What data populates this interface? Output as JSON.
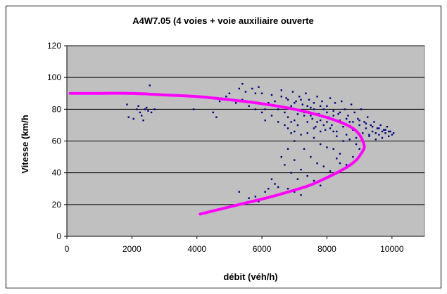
{
  "chart_data": {
    "type": "scatter",
    "title": "A4W7.05 (4 voies + voie auxiliaire ouverte",
    "xlabel": "débit (véh/h)",
    "ylabel": "Vitesse (km/h",
    "xlim": [
      0,
      11000
    ],
    "ylim": [
      0,
      120
    ],
    "xticks": [
      0,
      2000,
      4000,
      6000,
      8000,
      10000
    ],
    "yticks": [
      0,
      20,
      40,
      60,
      80,
      100,
      120
    ],
    "xtick_labels": [
      "0",
      "2000",
      "4000",
      "6000",
      "8000",
      "10000"
    ],
    "ytick_labels": [
      "0",
      "20",
      "40",
      "60",
      "80",
      "100",
      "120"
    ],
    "grid": "horizontal",
    "legend": "none",
    "plot_background": "#c0c0c0",
    "series": [
      {
        "kind": "scatter",
        "color": "#000080",
        "points": [
          [
            1850,
            83
          ],
          [
            1900,
            75
          ],
          [
            2050,
            74
          ],
          [
            2150,
            80
          ],
          [
            2200,
            82
          ],
          [
            2250,
            78
          ],
          [
            2300,
            76
          ],
          [
            2350,
            73
          ],
          [
            2400,
            80
          ],
          [
            2450,
            81
          ],
          [
            2500,
            79
          ],
          [
            2550,
            95
          ],
          [
            2600,
            78
          ],
          [
            2700,
            80
          ],
          [
            3900,
            80
          ],
          [
            4500,
            78
          ],
          [
            4600,
            75
          ],
          [
            4700,
            85
          ],
          [
            4900,
            88
          ],
          [
            5000,
            90
          ],
          [
            5200,
            84
          ],
          [
            5300,
            93
          ],
          [
            5400,
            96
          ],
          [
            5500,
            91
          ],
          [
            5700,
            93
          ],
          [
            5800,
            90
          ],
          [
            5900,
            94
          ],
          [
            6000,
            90
          ],
          [
            6100,
            73
          ],
          [
            6200,
            84
          ],
          [
            6300,
            89
          ],
          [
            6400,
            85
          ],
          [
            6500,
            80
          ],
          [
            6600,
            92
          ],
          [
            6700,
            78
          ],
          [
            6750,
            87
          ],
          [
            6800,
            75
          ],
          [
            6900,
            82
          ],
          [
            6950,
            91
          ],
          [
            7000,
            73
          ],
          [
            7050,
            85
          ],
          [
            7100,
            70
          ],
          [
            7150,
            88
          ],
          [
            7200,
            79
          ],
          [
            7250,
            83
          ],
          [
            7300,
            76
          ],
          [
            7350,
            90
          ],
          [
            7400,
            72
          ],
          [
            7450,
            86
          ],
          [
            7500,
            81
          ],
          [
            7550,
            74
          ],
          [
            7600,
            84
          ],
          [
            7650,
            69
          ],
          [
            7700,
            88
          ],
          [
            7750,
            77
          ],
          [
            7800,
            73
          ],
          [
            7850,
            85
          ],
          [
            7900,
            80
          ],
          [
            7950,
            67
          ],
          [
            8000,
            82
          ],
          [
            8050,
            75
          ],
          [
            8100,
            87
          ],
          [
            8150,
            70
          ],
          [
            8200,
            79
          ],
          [
            8250,
            84
          ],
          [
            8300,
            66
          ],
          [
            8350,
            77
          ],
          [
            8400,
            73
          ],
          [
            8450,
            85
          ],
          [
            8500,
            69
          ],
          [
            8550,
            80
          ],
          [
            8600,
            64
          ],
          [
            8650,
            76
          ],
          [
            8700,
            72
          ],
          [
            8750,
            83
          ],
          [
            8800,
            67
          ],
          [
            8850,
            78
          ],
          [
            8900,
            62
          ],
          [
            8950,
            74
          ],
          [
            9000,
            70
          ],
          [
            9050,
            80
          ],
          [
            9100,
            65
          ],
          [
            9150,
            72
          ],
          [
            9200,
            68
          ],
          [
            9250,
            75
          ],
          [
            9300,
            63
          ],
          [
            9350,
            70
          ],
          [
            9400,
            66
          ],
          [
            9450,
            72
          ],
          [
            9500,
            61
          ],
          [
            9550,
            68
          ],
          [
            9600,
            64
          ],
          [
            9650,
            70
          ],
          [
            9700,
            62
          ],
          [
            9750,
            67
          ],
          [
            9800,
            65
          ],
          [
            9850,
            69
          ],
          [
            9900,
            63
          ],
          [
            9950,
            66
          ],
          [
            10000,
            64
          ],
          [
            10050,
            65
          ],
          [
            6600,
            88
          ],
          [
            6800,
            86
          ],
          [
            7000,
            84
          ],
          [
            7200,
            86
          ],
          [
            7400,
            82
          ],
          [
            7600,
            80
          ],
          [
            7800,
            82
          ],
          [
            8000,
            78
          ],
          [
            8200,
            76
          ],
          [
            8400,
            78
          ],
          [
            8600,
            74
          ],
          [
            8800,
            72
          ],
          [
            9000,
            73
          ],
          [
            9200,
            71
          ],
          [
            9400,
            69
          ],
          [
            9600,
            68
          ],
          [
            9800,
            67
          ],
          [
            8700,
            61
          ],
          [
            8900,
            58
          ],
          [
            9100,
            60
          ],
          [
            9300,
            64
          ],
          [
            9500,
            65
          ],
          [
            9700,
            66
          ],
          [
            9900,
            66
          ],
          [
            7100,
            77
          ],
          [
            7300,
            78
          ],
          [
            7500,
            76
          ],
          [
            7700,
            72
          ],
          [
            7900,
            70
          ],
          [
            8100,
            68
          ],
          [
            8300,
            63
          ],
          [
            8500,
            60
          ],
          [
            7600,
            62
          ],
          [
            7800,
            58
          ],
          [
            8000,
            56
          ],
          [
            8200,
            55
          ],
          [
            8400,
            52
          ],
          [
            7300,
            55
          ],
          [
            7500,
            50
          ],
          [
            7700,
            46
          ],
          [
            7900,
            44
          ],
          [
            8100,
            41
          ],
          [
            7000,
            48
          ],
          [
            7200,
            42
          ],
          [
            7400,
            38
          ],
          [
            7600,
            35
          ],
          [
            7800,
            32
          ],
          [
            6900,
            40
          ],
          [
            7100,
            36
          ],
          [
            7300,
            31
          ],
          [
            6800,
            30
          ],
          [
            7000,
            28
          ],
          [
            7200,
            26
          ],
          [
            6600,
            27
          ],
          [
            6500,
            31
          ],
          [
            6300,
            36
          ],
          [
            6400,
            33
          ],
          [
            6100,
            28
          ],
          [
            5900,
            22
          ],
          [
            5800,
            25
          ],
          [
            5600,
            24
          ],
          [
            6200,
            30
          ],
          [
            5300,
            28
          ],
          [
            6700,
            45
          ],
          [
            6600,
            50
          ],
          [
            6800,
            55
          ],
          [
            7000,
            60
          ],
          [
            6900,
            65
          ],
          [
            6700,
            70
          ],
          [
            6900,
            72
          ],
          [
            8600,
            45
          ],
          [
            8400,
            46
          ],
          [
            8300,
            49
          ],
          [
            8800,
            50
          ],
          [
            9000,
            55
          ],
          [
            8200,
            66
          ],
          [
            8000,
            72
          ],
          [
            7800,
            66
          ],
          [
            7600,
            68
          ],
          [
            7400,
            65
          ],
          [
            7200,
            64
          ],
          [
            7000,
            66
          ],
          [
            6800,
            68
          ],
          [
            6500,
            72
          ],
          [
            6300,
            76
          ],
          [
            6100,
            80
          ],
          [
            6000,
            78
          ],
          [
            5800,
            80
          ],
          [
            5600,
            82
          ],
          [
            5400,
            86
          ]
        ]
      },
      {
        "kind": "line",
        "color": "#ff00ff",
        "points": [
          [
            100,
            90
          ],
          [
            1000,
            90
          ],
          [
            2000,
            90
          ],
          [
            3000,
            89
          ],
          [
            4000,
            88
          ],
          [
            5000,
            86
          ],
          [
            6000,
            83.5
          ],
          [
            7000,
            80
          ],
          [
            7800,
            76
          ],
          [
            8400,
            72
          ],
          [
            8800,
            68
          ],
          [
            9000,
            64
          ],
          [
            9100,
            60
          ],
          [
            9150,
            56
          ],
          [
            9050,
            52
          ],
          [
            8900,
            48
          ],
          [
            8650,
            44
          ],
          [
            8300,
            40
          ],
          [
            7900,
            36
          ],
          [
            7450,
            32
          ],
          [
            6900,
            28.5
          ],
          [
            6300,
            25
          ],
          [
            5600,
            21.5
          ],
          [
            4800,
            17.5
          ],
          [
            4100,
            14
          ]
        ]
      }
    ]
  }
}
